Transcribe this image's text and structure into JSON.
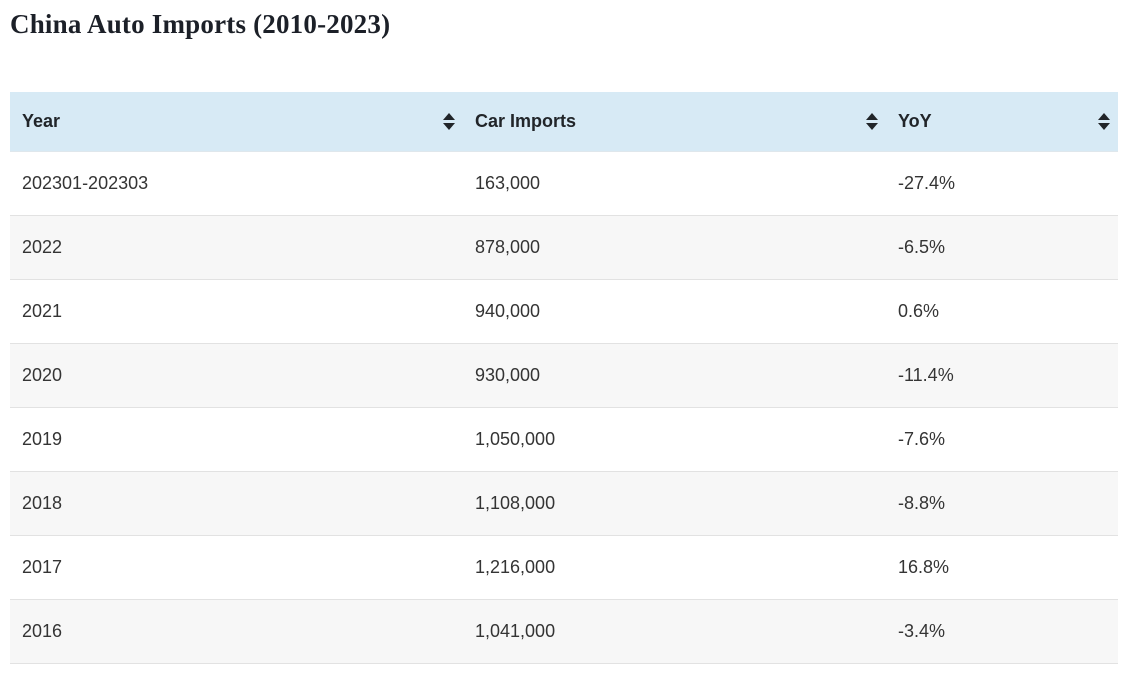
{
  "page": {
    "title": "China Auto Imports (2010-2023)"
  },
  "chart_data": {
    "type": "table",
    "title": "China Auto Imports (2010-2023)",
    "columns": [
      "Year",
      "Car Imports",
      "YoY"
    ],
    "rows": [
      [
        "202301-202303",
        "163,000",
        "-27.4%"
      ],
      [
        "2022",
        "878,000",
        "-6.5%"
      ],
      [
        "2021",
        "940,000",
        "0.6%"
      ],
      [
        "2020",
        "930,000",
        "-11.4%"
      ],
      [
        "2019",
        "1,050,000",
        "-7.6%"
      ],
      [
        "2018",
        "1,108,000",
        "-8.8%"
      ],
      [
        "2017",
        "1,216,000",
        "16.8%"
      ],
      [
        "2016",
        "1,041,000",
        "-3.4%"
      ]
    ],
    "notes": "table continues below the visible viewport; each column header has an up/down sort control"
  },
  "icons": {
    "sort": "sort-icon (stacked up and down triangles)"
  },
  "colors": {
    "header_bg": "#d7eaf5",
    "row_alt_bg": "#f7f7f7",
    "row_bg": "#ffffff",
    "border": "#e2e2e2",
    "cell_text": "#343434",
    "header_text": "#212529",
    "title_text": "#1c2028"
  }
}
